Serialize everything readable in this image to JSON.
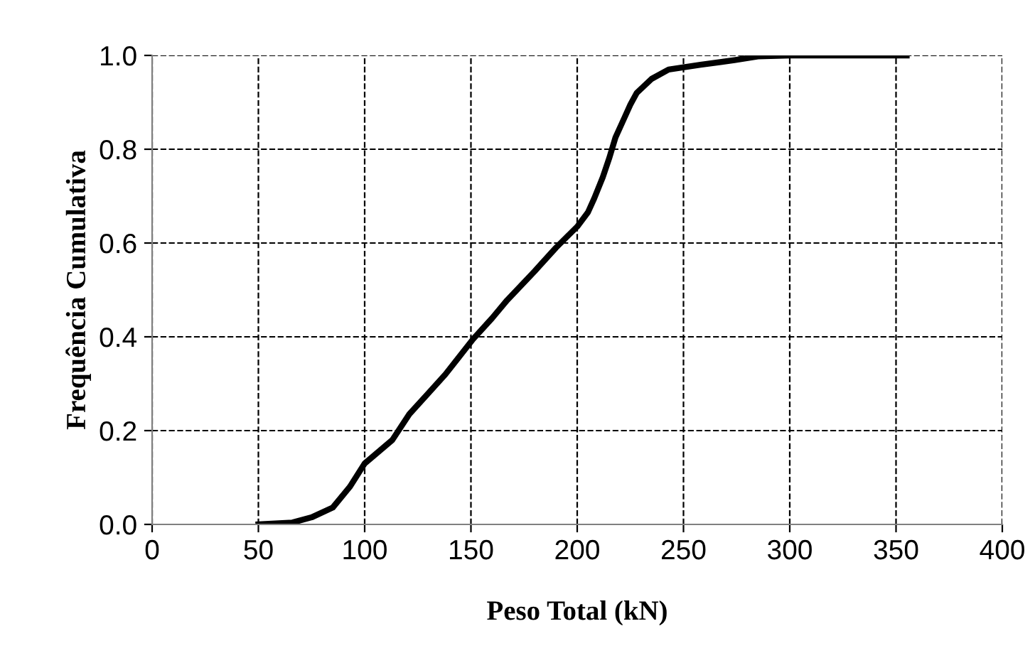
{
  "chart_data": {
    "type": "line",
    "xlabel": "Peso Total (kN)",
    "ylabel": "Frequência Cumulativa",
    "series": [
      {
        "color": "#000000",
        "x": [
          50,
          66,
          75,
          85,
          93,
          100,
          113,
          121,
          130,
          138,
          151,
          160,
          167,
          180,
          190,
          200,
          205,
          208,
          212,
          215,
          218,
          222,
          225,
          228,
          235,
          243,
          258,
          274,
          285,
          300,
          355
        ],
        "values": [
          0,
          0.004,
          0.015,
          0.036,
          0.08,
          0.13,
          0.18,
          0.235,
          0.28,
          0.32,
          0.395,
          0.44,
          0.478,
          0.54,
          0.59,
          0.635,
          0.665,
          0.695,
          0.74,
          0.78,
          0.825,
          0.865,
          0.895,
          0.92,
          0.95,
          0.97,
          0.98,
          0.99,
          0.998,
          1.0,
          1.0
        ]
      }
    ],
    "xlim": [
      0,
      400
    ],
    "xticks": [
      0,
      50,
      100,
      150,
      200,
      250,
      300,
      350,
      400
    ],
    "ylim": [
      0,
      1
    ],
    "yticks": [
      {
        "value": 0,
        "label": "0.0"
      },
      {
        "value": 0.2,
        "label": "0.2"
      },
      {
        "value": 0.4,
        "label": "0.4"
      },
      {
        "value": 0.6,
        "label": "0.6"
      },
      {
        "value": 0.8,
        "label": "0.8"
      },
      {
        "value": 1.0,
        "label": "1.0"
      }
    ],
    "grid": true,
    "marker": "none",
    "line_style": "solid"
  }
}
